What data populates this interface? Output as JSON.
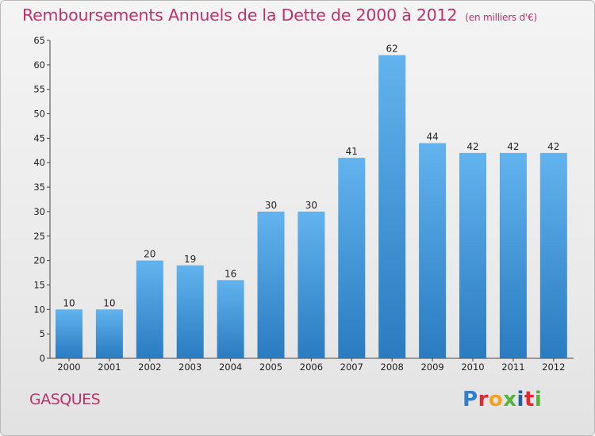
{
  "page": {
    "commune": "GASQUES"
  },
  "brand": {
    "letters": [
      {
        "char": "P",
        "color": "#2f7fd1"
      },
      {
        "char": "r",
        "color": "#e2272f"
      },
      {
        "char": "o",
        "color": "#f2a21e"
      },
      {
        "char": "x",
        "color": "#58b23a"
      },
      {
        "char": "i",
        "color": "#1f5fa8"
      },
      {
        "char": "t",
        "color": "#e2272f"
      },
      {
        "char": "i",
        "color": "#58b23a"
      }
    ]
  },
  "chart_data": {
    "type": "bar",
    "title": "Remboursements Annuels de la Dette de 2000 à 2012",
    "unit_label": "(en milliers d'€)",
    "categories": [
      "2000",
      "2001",
      "2002",
      "2003",
      "2004",
      "2005",
      "2006",
      "2007",
      "2008",
      "2009",
      "2010",
      "2011",
      "2012"
    ],
    "values": [
      10,
      10,
      20,
      19,
      16,
      30,
      30,
      41,
      62,
      44,
      42,
      42,
      42
    ],
    "ylim": [
      0,
      65
    ],
    "yticks": [
      0,
      5,
      10,
      15,
      20,
      25,
      30,
      35,
      40,
      45,
      50,
      55,
      60,
      65
    ],
    "grid": false,
    "bar_color_top": "#62b3ee",
    "bar_color_bottom": "#2a7bc0"
  }
}
